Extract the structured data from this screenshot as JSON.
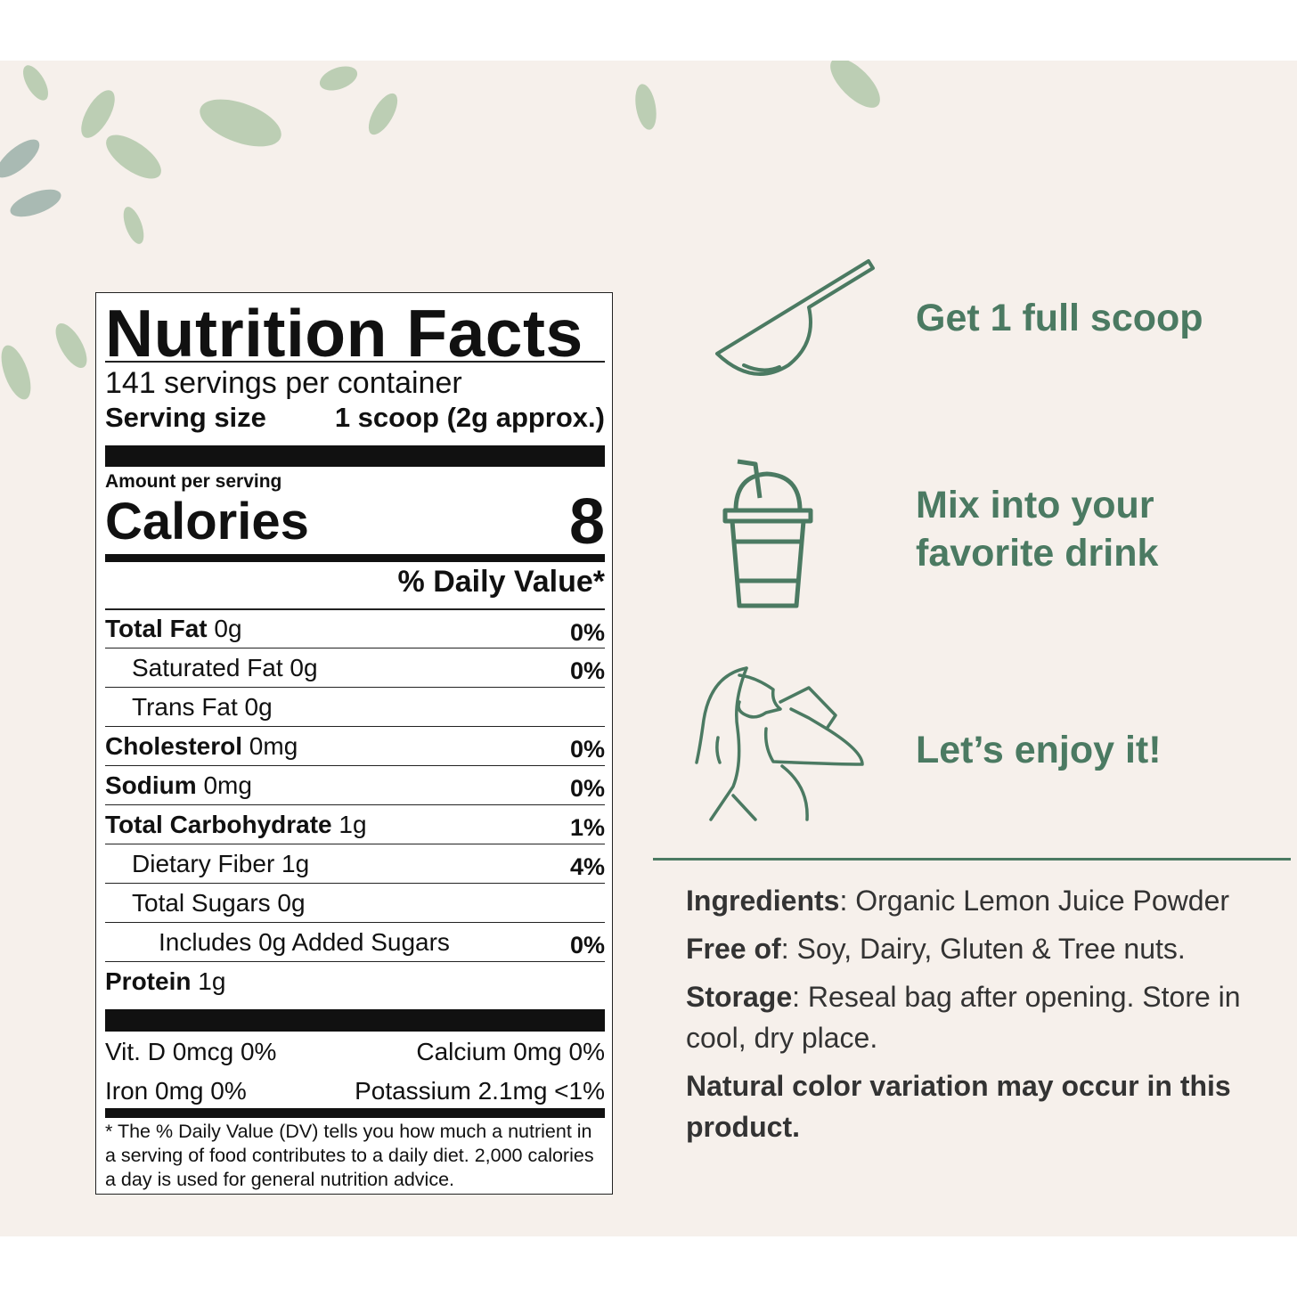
{
  "label": {
    "title": "Nutrition Facts",
    "servings": "141 servings per container",
    "serving_size_label": "Serving size",
    "serving_size_value": "1 scoop (2g approx.)",
    "amount_per_serving": "Amount per serving",
    "calories_label": "Calories",
    "calories_value": "8",
    "daily_value_header": "% Daily Value*",
    "rows": [
      {
        "name": "Total Fat",
        "amount": " 0g",
        "dv": "0%",
        "bold": true,
        "indent": 0
      },
      {
        "name": "Saturated Fat",
        "amount": " 0g",
        "dv": "0%",
        "bold": false,
        "indent": 1
      },
      {
        "name": "Trans Fat",
        "amount": " 0g",
        "dv": "",
        "bold": false,
        "indent": 1
      },
      {
        "name": "Cholesterol",
        "amount": " 0mg",
        "dv": "0%",
        "bold": true,
        "indent": 0
      },
      {
        "name": "Sodium",
        "amount": " 0mg",
        "dv": "0%",
        "bold": true,
        "indent": 0
      },
      {
        "name": "Total Carbohydrate",
        "amount": " 1g",
        "dv": "1%",
        "bold": true,
        "indent": 0
      },
      {
        "name": "Dietary Fiber",
        "amount": " 1g",
        "dv": "4%",
        "bold": false,
        "indent": 1
      },
      {
        "name": "Total Sugars",
        "amount": " 0g",
        "dv": "",
        "bold": false,
        "indent": 1
      },
      {
        "name": "Includes 0g Added Sugars",
        "amount": "",
        "dv": "0%",
        "bold": false,
        "indent": 2
      },
      {
        "name": "Protein",
        "amount": " 1g",
        "dv": "",
        "bold": true,
        "indent": 0
      }
    ],
    "vitamins": [
      [
        "Vit. D 0mcg 0%",
        "Calcium 0mg 0%"
      ],
      [
        "Iron 0mg 0%",
        "Potassium 2.1mg <1%"
      ]
    ],
    "footnote": "* The % Daily Value (DV) tells you how much a nutrient in a serving of food contributes to a daily diet. 2,000 calories a day is used for general nutrition advice."
  },
  "steps": [
    {
      "icon": "scoop-icon",
      "text": "Get 1 full scoop"
    },
    {
      "icon": "drink-cup-icon",
      "text": "Mix into your favorite drink"
    },
    {
      "icon": "woman-drinking-icon",
      "text": "Let’s enjoy it!"
    }
  ],
  "info": {
    "ingredients_label": "Ingredients",
    "ingredients_text": ": Organic Lemon Juice Powder",
    "free_of_label": "Free of",
    "free_of_text": ": Soy, Dairy, Gluten & Tree nuts.",
    "storage_label": "Storage",
    "storage_text": ": Reseal bag after opening. Store in cool, dry place.",
    "note": "Natural color variation may occur in this product."
  },
  "colors": {
    "accent": "#4b7a62",
    "background": "#f6f0eb",
    "leaf": "#a9c3a2"
  }
}
